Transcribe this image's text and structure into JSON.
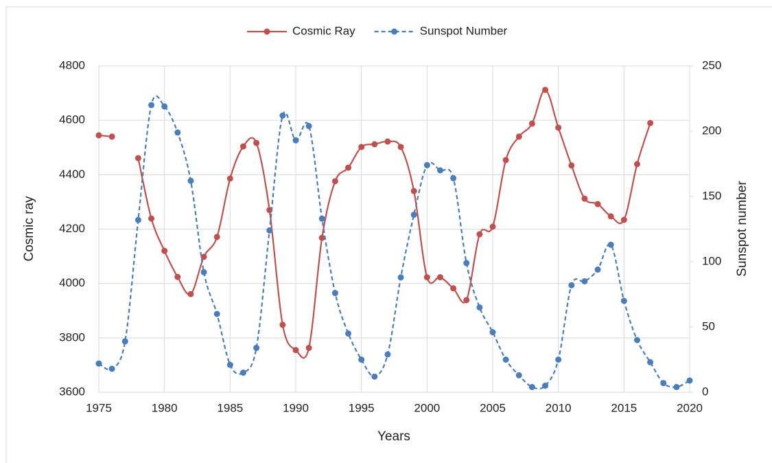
{
  "chart_data": {
    "type": "line",
    "x_label": "Years",
    "y_label": "Cosmic ray",
    "y2_label": "Sunspot number",
    "x": [
      1975,
      1976,
      1977,
      1978,
      1979,
      1980,
      1981,
      1982,
      1983,
      1984,
      1985,
      1986,
      1987,
      1988,
      1989,
      1990,
      1991,
      1992,
      1993,
      1994,
      1995,
      1996,
      1997,
      1998,
      1999,
      2000,
      2001,
      2002,
      2003,
      2004,
      2005,
      2006,
      2007,
      2008,
      2009,
      2010,
      2011,
      2012,
      2013,
      2014,
      2015,
      2016,
      2017,
      2018,
      2019,
      2020
    ],
    "series": [
      {
        "name": "Cosmic Ray",
        "color": "#c0504d",
        "dashed": false,
        "axis": "y",
        "values": [
          4545,
          4540,
          null,
          4461,
          4239,
          4120,
          4024,
          3961,
          4098,
          4171,
          4386,
          4504,
          4517,
          4270,
          3848,
          3755,
          3763,
          4168,
          4376,
          4426,
          4502,
          4512,
          4522,
          4502,
          4340,
          4023,
          4023,
          3982,
          3939,
          4181,
          4209,
          4454,
          4540,
          4588,
          4712,
          4573,
          4434,
          4312,
          4292,
          4247,
          4234,
          4439,
          4590,
          null,
          null,
          null
        ]
      },
      {
        "name": "Sunspot Number",
        "color": "#4a7ebb",
        "dashed": true,
        "axis": "y2",
        "values": [
          22,
          18,
          39,
          132,
          220,
          219,
          199,
          162,
          92,
          60,
          21,
          15,
          34,
          124,
          212,
          193,
          204,
          133,
          76,
          45,
          25,
          12,
          29,
          88,
          136,
          174,
          170,
          164,
          99,
          65,
          46,
          25,
          13,
          4,
          5,
          25,
          82,
          85,
          94,
          113,
          70,
          40,
          23,
          7,
          4,
          9
        ]
      }
    ],
    "xlim": [
      1975,
      2020
    ],
    "xticks": [
      1975,
      1980,
      1985,
      1990,
      1995,
      2000,
      2005,
      2010,
      2015,
      2020
    ],
    "ylim": [
      3600,
      4800
    ],
    "yticks": [
      3600,
      3800,
      4000,
      4200,
      4400,
      4600,
      4800
    ],
    "y2lim": [
      0,
      250
    ],
    "y2ticks": [
      0,
      50,
      100,
      150,
      200,
      250
    ],
    "grid": true,
    "legend": "top"
  }
}
